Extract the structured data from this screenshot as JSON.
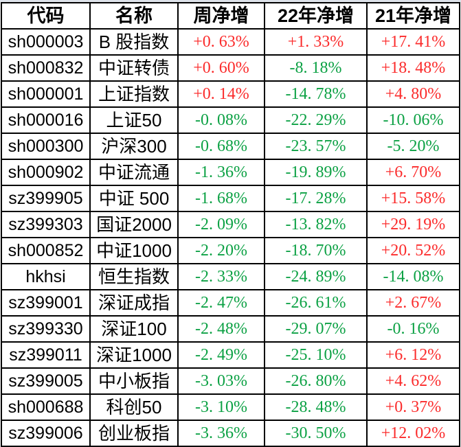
{
  "colors": {
    "positive_red": "#fb2b2b",
    "negative_green": "#0ca144",
    "border_black": "#000000",
    "background": "#ffffff",
    "edge_strip_gray": "#dde2ea"
  },
  "chart_data": {
    "type": "table",
    "columns": [
      "代码",
      "名称",
      "周净增",
      "22年净增",
      "21年净增"
    ],
    "rows": [
      {
        "code": "sh000003",
        "name": "B 股指数",
        "display": [
          "+0. 63%",
          "+1. 33%",
          "+17. 41%"
        ],
        "values": [
          0.63,
          1.33,
          17.41
        ]
      },
      {
        "code": "sh000832",
        "name": "中证转债",
        "display": [
          "+0. 60%",
          "-8. 18%",
          "+18. 48%"
        ],
        "values": [
          0.6,
          -8.18,
          18.48
        ]
      },
      {
        "code": "sh000001",
        "name": "上证指数",
        "display": [
          "+0. 14%",
          "-14. 78%",
          "+4. 80%"
        ],
        "values": [
          0.14,
          -14.78,
          4.8
        ]
      },
      {
        "code": "sh000016",
        "name": "上证50",
        "display": [
          "-0. 08%",
          "-22. 29%",
          "-10. 06%"
        ],
        "values": [
          -0.08,
          -22.29,
          -10.06
        ]
      },
      {
        "code": "sh000300",
        "name": "沪深300",
        "display": [
          "-0. 68%",
          "-23. 57%",
          "-5. 20%"
        ],
        "values": [
          -0.68,
          -23.57,
          -5.2
        ]
      },
      {
        "code": "sh000902",
        "name": "中证流通",
        "display": [
          "-1. 36%",
          "-19. 89%",
          "+6. 70%"
        ],
        "values": [
          -1.36,
          -19.89,
          6.7
        ]
      },
      {
        "code": "sz399905",
        "name": "中证 500",
        "display": [
          "-1. 68%",
          "-17. 28%",
          "+15. 58%"
        ],
        "values": [
          -1.68,
          -17.28,
          15.58
        ]
      },
      {
        "code": "sz399303",
        "name": "国证2000",
        "display": [
          "-2. 09%",
          "-13. 82%",
          "+29. 19%"
        ],
        "values": [
          -2.09,
          -13.82,
          29.19
        ]
      },
      {
        "code": "sh000852",
        "name": "中证1000",
        "display": [
          "-2. 20%",
          "-18. 70%",
          "+20. 52%"
        ],
        "values": [
          -2.2,
          -18.7,
          20.52
        ]
      },
      {
        "code": "hkhsi",
        "name": "恒生指数",
        "display": [
          "-2. 33%",
          "-24. 89%",
          "-14. 08%"
        ],
        "values": [
          -2.33,
          -24.89,
          -14.08
        ]
      },
      {
        "code": "sz399001",
        "name": "深证成指",
        "display": [
          "-2. 47%",
          "-26. 61%",
          "+2. 67%"
        ],
        "values": [
          -2.47,
          -26.61,
          2.67
        ]
      },
      {
        "code": "sz399330",
        "name": "深证100",
        "display": [
          "-2. 48%",
          "-29. 07%",
          "-0. 16%"
        ],
        "values": [
          -2.48,
          -29.07,
          -0.16
        ]
      },
      {
        "code": "sz399011",
        "name": "深证1000",
        "display": [
          "-2. 49%",
          "-25. 10%",
          "+6. 12%"
        ],
        "values": [
          -2.49,
          -25.1,
          6.12
        ]
      },
      {
        "code": "sz399005",
        "name": "中小板指",
        "display": [
          "-3. 03%",
          "-26. 80%",
          "+4. 62%"
        ],
        "values": [
          -3.03,
          -26.8,
          4.62
        ]
      },
      {
        "code": "sh000688",
        "name": "科创50",
        "display": [
          "-3. 10%",
          "-28. 48%",
          "+0. 37%"
        ],
        "values": [
          -3.1,
          -28.48,
          0.37
        ]
      },
      {
        "code": "sz399006",
        "name": "创业板指",
        "display": [
          "-3. 36%",
          "-30. 50%",
          "+12. 02%"
        ],
        "values": [
          -3.36,
          -30.5,
          12.02
        ]
      }
    ]
  }
}
